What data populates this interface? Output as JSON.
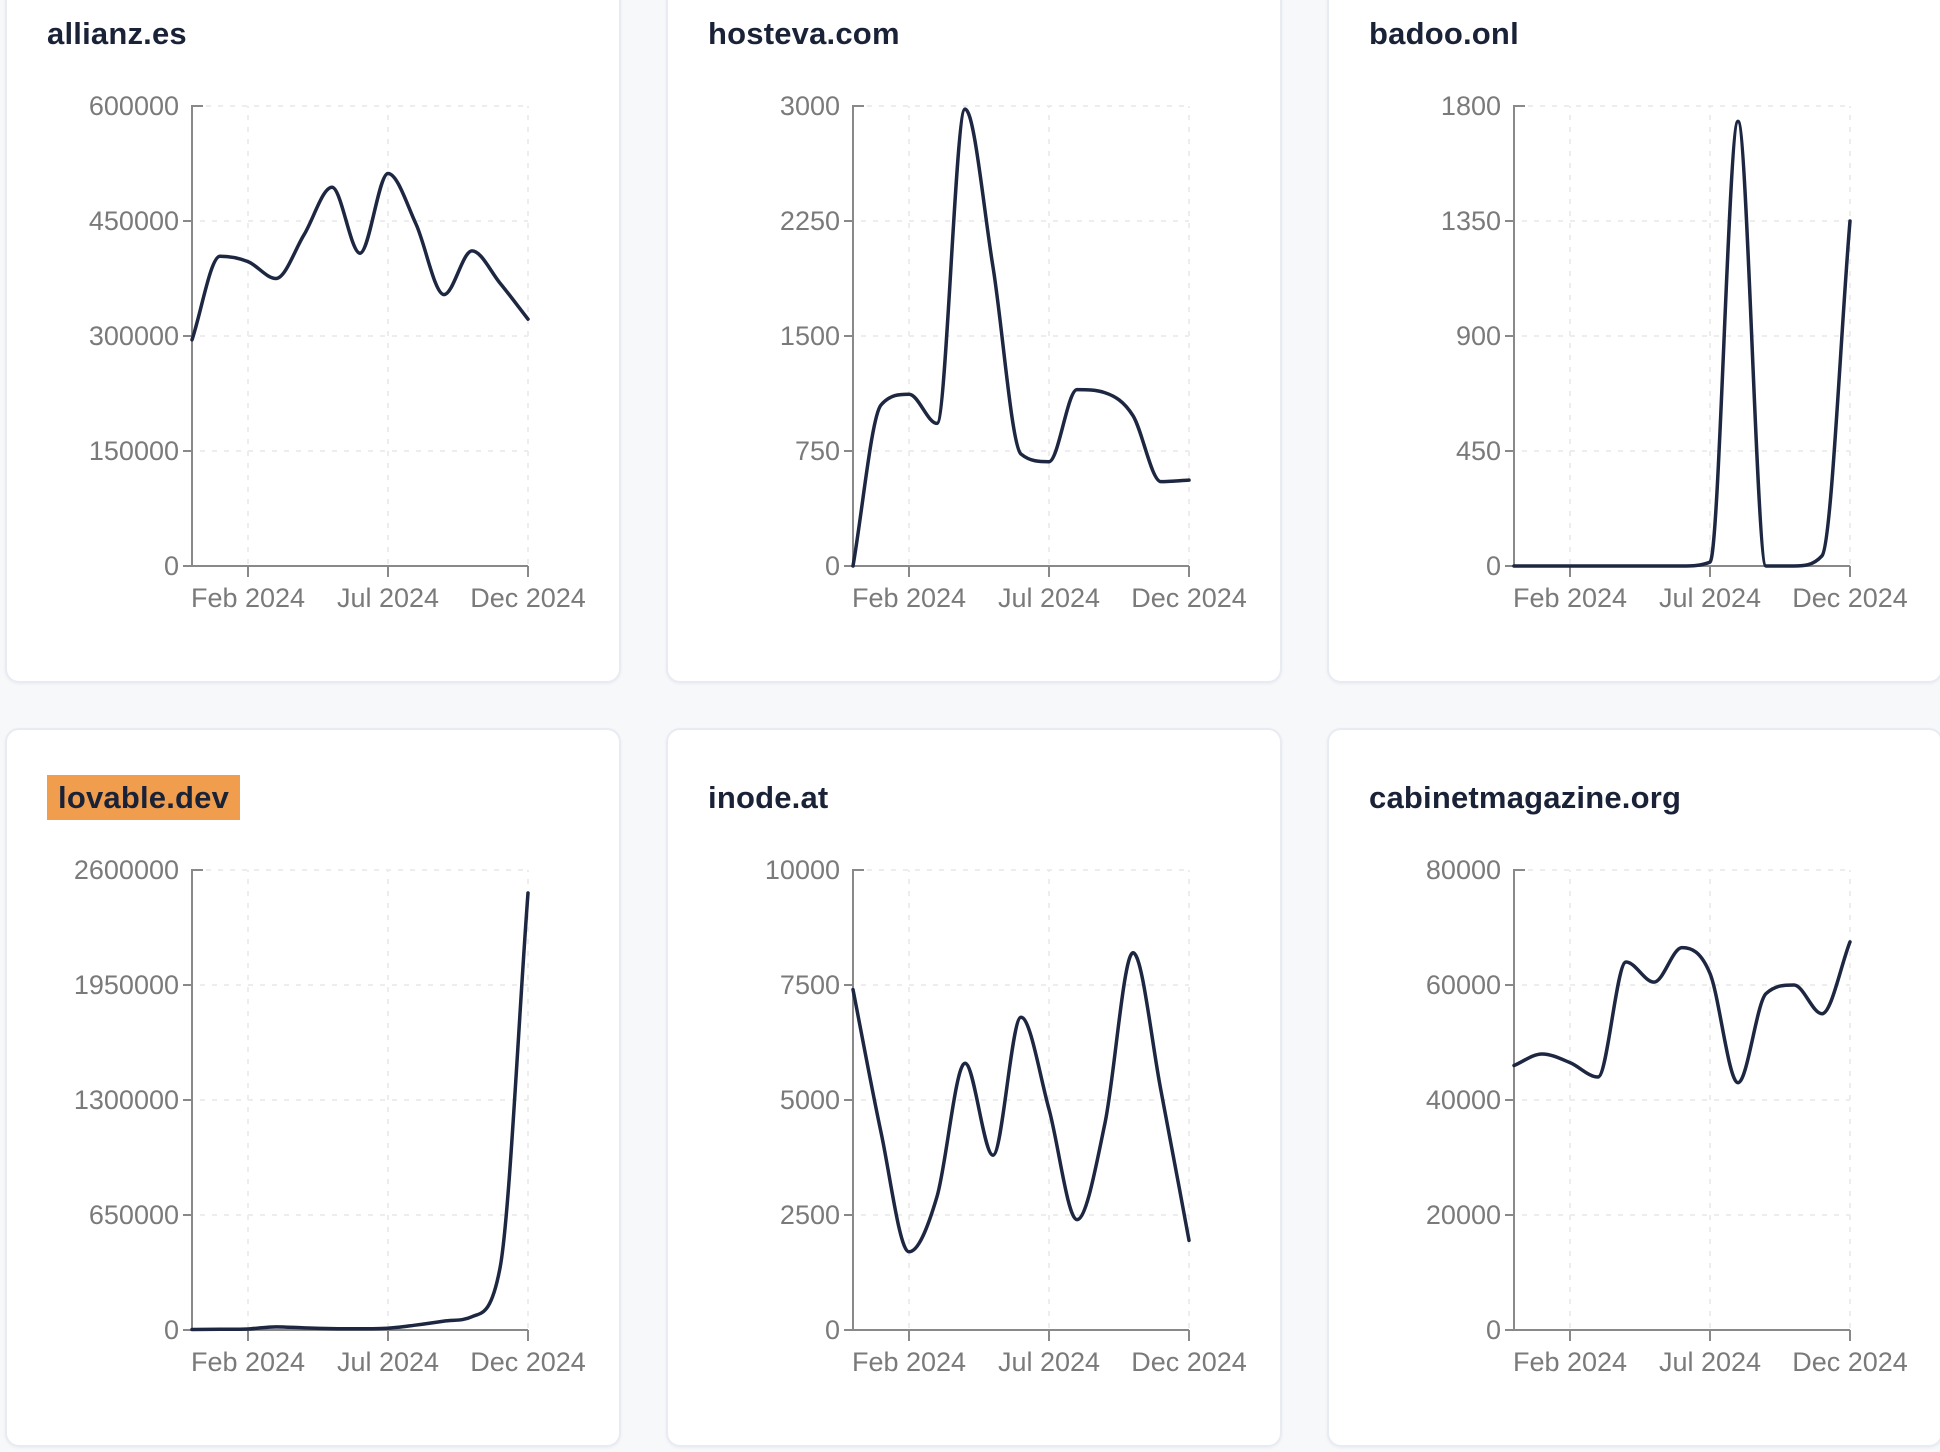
{
  "page": {
    "background_color": "#f7f8fa",
    "card_background": "#ffffff",
    "card_border_color": "#e8ecf2",
    "title_color": "#1a2238",
    "line_color": "#1d2741",
    "axis_color": "#898989",
    "tick_label_color": "#7a7a7a",
    "grid_color": "#ededee",
    "highlight_color": "#f09e4d"
  },
  "chart_data": [
    {
      "type": "line",
      "title": "allianz.es",
      "title_highlighted": false,
      "x": [
        "Dec 2023",
        "Jan 2024",
        "Feb 2024",
        "Mar 2024",
        "Apr 2024",
        "May 2024",
        "Jun 2024",
        "Jul 2024",
        "Aug 2024",
        "Sep 2024",
        "Oct 2024",
        "Nov 2024",
        "Dec 2024"
      ],
      "values": [
        295000,
        404000,
        397000,
        375000,
        432000,
        494000,
        408000,
        512000,
        446000,
        354000,
        411000,
        369000,
        322000
      ],
      "ylim": [
        0,
        600000
      ],
      "yticks": [
        0,
        150000,
        300000,
        450000,
        600000
      ],
      "xticks": [
        {
          "label": "Feb 2024",
          "index": 2
        },
        {
          "label": "Jul 2024",
          "index": 7
        },
        {
          "label": "Dec 2024",
          "index": 12
        }
      ],
      "grid": "dashed",
      "legend": null
    },
    {
      "type": "line",
      "title": "hosteva.com",
      "title_highlighted": false,
      "x": [
        "Dec 2023",
        "Jan 2024",
        "Feb 2024",
        "Mar 2024",
        "Apr 2024",
        "May 2024",
        "Jun 2024",
        "Jul 2024",
        "Aug 2024",
        "Sep 2024",
        "Oct 2024",
        "Nov 2024",
        "Dec 2024"
      ],
      "values": [
        0,
        1050,
        1120,
        930,
        2980,
        1950,
        730,
        680,
        1150,
        1130,
        980,
        550,
        560
      ],
      "ylim": [
        0,
        3000
      ],
      "yticks": [
        0,
        750,
        1500,
        2250,
        3000
      ],
      "xticks": [
        {
          "label": "Feb 2024",
          "index": 2
        },
        {
          "label": "Jul 2024",
          "index": 7
        },
        {
          "label": "Dec 2024",
          "index": 12
        }
      ],
      "grid": "dashed",
      "legend": null
    },
    {
      "type": "line",
      "title": "badoo.onl",
      "title_highlighted": false,
      "x": [
        "Dec 2023",
        "Jan 2024",
        "Feb 2024",
        "Mar 2024",
        "Apr 2024",
        "May 2024",
        "Jun 2024",
        "Jul 2024",
        "Aug 2024",
        "Sep 2024",
        "Oct 2024",
        "Nov 2024",
        "Dec 2024"
      ],
      "values": [
        0,
        0,
        0,
        0,
        0,
        0,
        0,
        15,
        1740,
        0,
        0,
        40,
        1350
      ],
      "ylim": [
        0,
        1800
      ],
      "yticks": [
        0,
        450,
        900,
        1350,
        1800
      ],
      "xticks": [
        {
          "label": "Feb 2024",
          "index": 2
        },
        {
          "label": "Jul 2024",
          "index": 7
        },
        {
          "label": "Dec 2024",
          "index": 12
        }
      ],
      "grid": "dashed",
      "legend": null
    },
    {
      "type": "line",
      "title": "lovable.dev",
      "title_highlighted": true,
      "x": [
        "Dec 2023",
        "Jan 2024",
        "Feb 2024",
        "Mar 2024",
        "Apr 2024",
        "May 2024",
        "Jun 2024",
        "Jul 2024",
        "Aug 2024",
        "Sep 2024",
        "Oct 2024",
        "Nov 2024",
        "Dec 2024"
      ],
      "values": [
        3000,
        4000,
        6000,
        18000,
        12000,
        8000,
        7000,
        10000,
        28000,
        50000,
        75000,
        350000,
        2470000
      ],
      "ylim": [
        0,
        2600000
      ],
      "yticks": [
        0,
        650000,
        1300000,
        1950000,
        2600000
      ],
      "xticks": [
        {
          "label": "Feb 2024",
          "index": 2
        },
        {
          "label": "Jul 2024",
          "index": 7
        },
        {
          "label": "Dec 2024",
          "index": 12
        }
      ],
      "grid": "dashed",
      "legend": null
    },
    {
      "type": "line",
      "title": "inode.at",
      "title_highlighted": false,
      "x": [
        "Dec 2023",
        "Jan 2024",
        "Feb 2024",
        "Mar 2024",
        "Apr 2024",
        "May 2024",
        "Jun 2024",
        "Jul 2024",
        "Aug 2024",
        "Sep 2024",
        "Oct 2024",
        "Nov 2024",
        "Dec 2024"
      ],
      "values": [
        7400,
        4300,
        1700,
        2900,
        5800,
        3800,
        6800,
        4800,
        2400,
        4500,
        8200,
        5200,
        1950
      ],
      "ylim": [
        0,
        10000
      ],
      "yticks": [
        0,
        2500,
        5000,
        7500,
        10000
      ],
      "xticks": [
        {
          "label": "Feb 2024",
          "index": 2
        },
        {
          "label": "Jul 2024",
          "index": 7
        },
        {
          "label": "Dec 2024",
          "index": 12
        }
      ],
      "grid": "dashed",
      "legend": null
    },
    {
      "type": "line",
      "title": "cabinetmagazine.org",
      "title_highlighted": false,
      "x": [
        "Dec 2023",
        "Jan 2024",
        "Feb 2024",
        "Mar 2024",
        "Apr 2024",
        "May 2024",
        "Jun 2024",
        "Jul 2024",
        "Aug 2024",
        "Sep 2024",
        "Oct 2024",
        "Nov 2024",
        "Dec 2024"
      ],
      "values": [
        46000,
        48000,
        46500,
        44000,
        64000,
        60500,
        66500,
        62000,
        43000,
        58500,
        60000,
        55000,
        67500
      ],
      "ylim": [
        0,
        80000
      ],
      "yticks": [
        0,
        20000,
        40000,
        60000,
        80000
      ],
      "xticks": [
        {
          "label": "Feb 2024",
          "index": 2
        },
        {
          "label": "Jul 2024",
          "index": 7
        },
        {
          "label": "Dec 2024",
          "index": 12
        }
      ],
      "grid": "dashed",
      "legend": null
    }
  ]
}
